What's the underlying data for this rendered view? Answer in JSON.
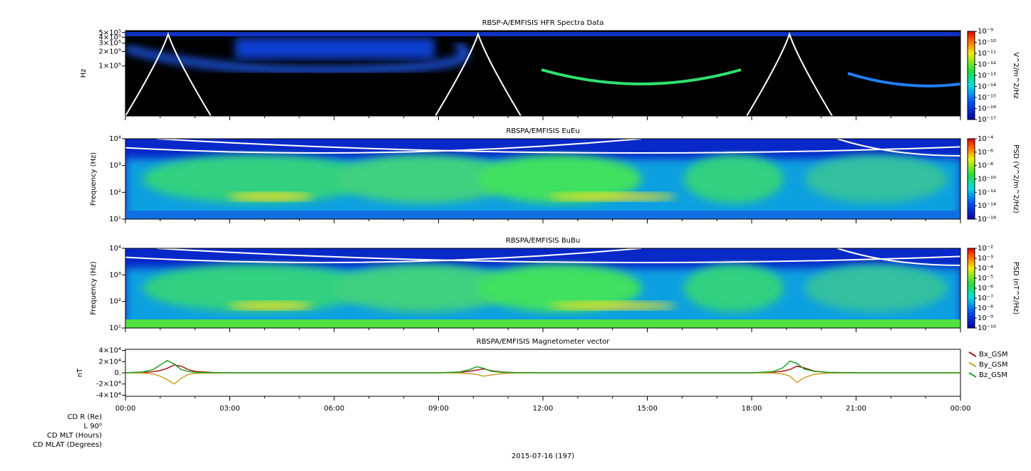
{
  "chart_data": [
    {
      "type": "spectrogram",
      "title": "RBSP-A/EMFISIS  HFR Spectra Data",
      "y_label": "Hz",
      "log_y": true,
      "ylim": [
        9000,
        550000
      ],
      "yticks": [
        {
          "value": 100000,
          "label": "1×10⁵"
        },
        {
          "value": 200000,
          "label": "2×10⁵"
        },
        {
          "value": 300000,
          "label": "3×10⁵"
        },
        {
          "value": 400000,
          "label": "4×10⁵"
        },
        {
          "value": 500000,
          "label": "5×10⁵"
        }
      ],
      "z_label": "V^2/m^2/Hz",
      "zlim": [
        1e-17,
        1e-09
      ],
      "zticks": [
        {
          "value": 1e-09,
          "label": "10⁻⁹"
        },
        {
          "value": 1e-10,
          "label": "10⁻¹⁰"
        },
        {
          "value": 1e-11,
          "label": "10⁻¹¹"
        },
        {
          "value": 1e-12,
          "label": "10⁻¹²"
        },
        {
          "value": 1e-13,
          "label": "10⁻¹³"
        },
        {
          "value": 1e-14,
          "label": "10⁻¹⁴"
        },
        {
          "value": 1e-15,
          "label": "10⁻¹⁵"
        },
        {
          "value": 1e-16,
          "label": "10⁻¹⁶"
        },
        {
          "value": 1e-17,
          "label": "10⁻¹⁷"
        }
      ]
    },
    {
      "type": "spectrogram",
      "title": "RBSPA/EMFISIS  EuEu",
      "y_label": "Frequency (Hz)",
      "log_y": true,
      "ylim": [
        10,
        10000
      ],
      "yticks": [
        {
          "value": 10,
          "label": "10¹"
        },
        {
          "value": 100,
          "label": "10²"
        },
        {
          "value": 1000,
          "label": "10³"
        },
        {
          "value": 10000,
          "label": "10⁴"
        }
      ],
      "z_label": "PSD (V^2/m^2/Hz)",
      "zlim": [
        1e-16,
        0.0001
      ],
      "zticks": [
        {
          "value": 0.0001,
          "label": "10⁻⁴"
        },
        {
          "value": 1e-06,
          "label": "10⁻⁶"
        },
        {
          "value": 1e-08,
          "label": "10⁻⁸"
        },
        {
          "value": 1e-10,
          "label": "10⁻¹⁰"
        },
        {
          "value": 1e-12,
          "label": "10⁻¹²"
        },
        {
          "value": 1e-14,
          "label": "10⁻¹⁴"
        },
        {
          "value": 1e-16,
          "label": "10⁻¹⁶"
        }
      ]
    },
    {
      "type": "spectrogram",
      "title": "RBSPA/EMFISIS  BuBu",
      "y_label": "Frequency (Hz)",
      "log_y": true,
      "ylim": [
        10,
        10000
      ],
      "yticks": [
        {
          "value": 10,
          "label": "10¹"
        },
        {
          "value": 100,
          "label": "10²"
        },
        {
          "value": 1000,
          "label": "10³"
        },
        {
          "value": 10000,
          "label": "10⁴"
        }
      ],
      "z_label": "PSD (nT^2/Hz)",
      "zlim": [
        1e-10,
        0.01
      ],
      "zticks": [
        {
          "value": 0.01,
          "label": "10⁻²"
        },
        {
          "value": 0.001,
          "label": "10⁻³"
        },
        {
          "value": 0.0001,
          "label": "10⁻⁴"
        },
        {
          "value": 1e-05,
          "label": "10⁻⁵"
        },
        {
          "value": 1e-06,
          "label": "10⁻⁶"
        },
        {
          "value": 1e-07,
          "label": "10⁻⁷"
        },
        {
          "value": 1e-08,
          "label": "10⁻⁸"
        },
        {
          "value": 1e-09,
          "label": "10⁻⁹"
        },
        {
          "value": 1e-10,
          "label": "10⁻¹⁰"
        }
      ]
    },
    {
      "type": "line",
      "title": "RBSPA/EMFISIS  Magnetometer vector",
      "y_label": "nT",
      "ylim": [
        -42000,
        42000
      ],
      "yticks": [
        {
          "value": 40000,
          "label": "4×10⁴"
        },
        {
          "value": 20000,
          "label": "2×10⁴"
        },
        {
          "value": 0,
          "label": "0."
        },
        {
          "value": -20000,
          "label": "-2×10⁴"
        },
        {
          "value": -40000,
          "label": "-4×10⁴"
        }
      ],
      "xlim": [
        0,
        24
      ],
      "xticks": [
        {
          "value": 0,
          "label": "00:00"
        },
        {
          "value": 3,
          "label": "03:00"
        },
        {
          "value": 6,
          "label": "06:00"
        },
        {
          "value": 9,
          "label": "09:00"
        },
        {
          "value": 12,
          "label": "12:00"
        },
        {
          "value": 15,
          "label": "15:00"
        },
        {
          "value": 18,
          "label": "18:00"
        },
        {
          "value": 21,
          "label": "21:00"
        },
        {
          "value": 24,
          "label": "00:00"
        }
      ],
      "x": [
        0,
        0.5,
        0.8,
        1.0,
        1.2,
        1.4,
        1.6,
        1.8,
        2.0,
        2.5,
        3,
        6,
        9,
        9.6,
        9.9,
        10.1,
        10.3,
        10.5,
        10.8,
        11.2,
        12,
        15,
        18,
        18.6,
        18.9,
        19.1,
        19.3,
        19.5,
        19.8,
        20.2,
        21,
        24
      ],
      "series": [
        {
          "name": "Bx_GSM",
          "color": "#a01818",
          "values": [
            0,
            500,
            2000,
            4000,
            8000,
            14000,
            12000,
            6000,
            2500,
            600,
            0,
            0,
            0,
            800,
            3000,
            5000,
            7000,
            4000,
            1500,
            300,
            0,
            0,
            0,
            1000,
            3000,
            6000,
            12000,
            9000,
            3000,
            700,
            0,
            0
          ]
        },
        {
          "name": "By_GSM",
          "color": "#c8a028",
          "values": [
            0,
            -500,
            -2000,
            -6000,
            -12000,
            -20000,
            -10000,
            -3000,
            -1000,
            -300,
            0,
            0,
            0,
            -500,
            -1500,
            -3000,
            -6000,
            -4000,
            -1500,
            -300,
            0,
            0,
            0,
            -500,
            -2000,
            -6000,
            -17000,
            -9000,
            -2500,
            -600,
            0,
            0
          ]
        },
        {
          "name": "Bz_GSM",
          "color": "#22a022",
          "values": [
            0,
            1500,
            6000,
            14000,
            22000,
            16000,
            6000,
            2500,
            1000,
            300,
            0,
            0,
            0,
            1500,
            6000,
            11000,
            8000,
            3000,
            1000,
            300,
            0,
            0,
            0,
            2000,
            9000,
            21000,
            17000,
            7000,
            2500,
            800,
            0,
            0
          ]
        }
      ]
    }
  ],
  "footer": {
    "rows": [
      "CD R (Re)",
      "L 90⁰",
      "CD MLT (Hours)",
      "CD MLAT (Degrees)"
    ],
    "date": "2015-07-16 (197)"
  }
}
